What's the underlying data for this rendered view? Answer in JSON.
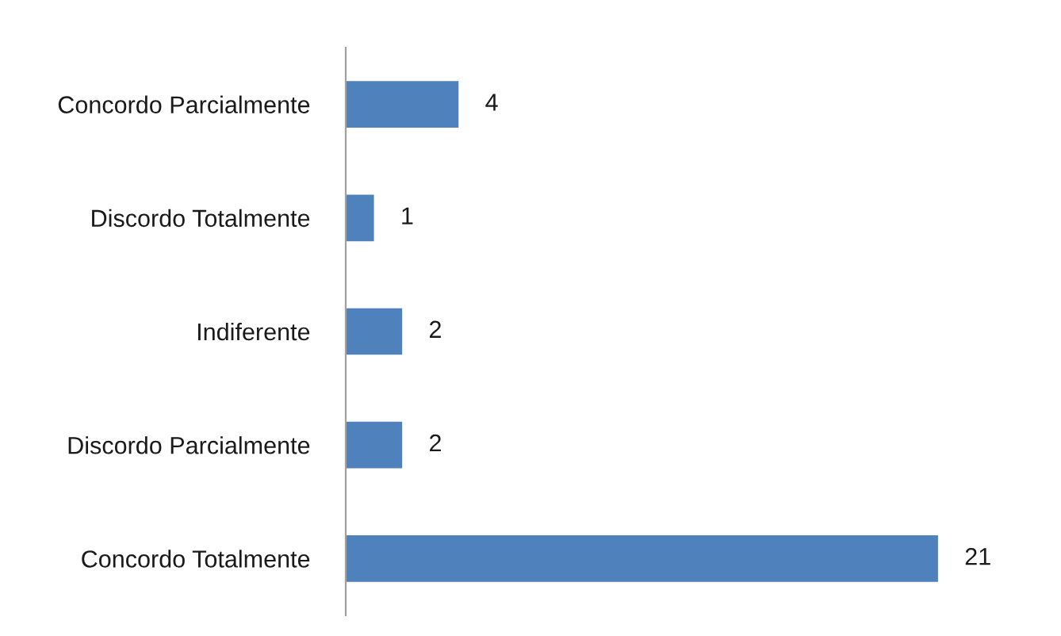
{
  "chart_data": {
    "type": "bar",
    "orientation": "horizontal",
    "categories": [
      "Concordo Parcialmente",
      "Discordo Totalmente",
      "Indiferente",
      "Discordo Parcialmente",
      "Concordo Totalmente"
    ],
    "values": [
      4,
      1,
      2,
      2,
      21
    ],
    "color": "#4f81bd",
    "data_labels": true,
    "tick_labels": "y"
  }
}
